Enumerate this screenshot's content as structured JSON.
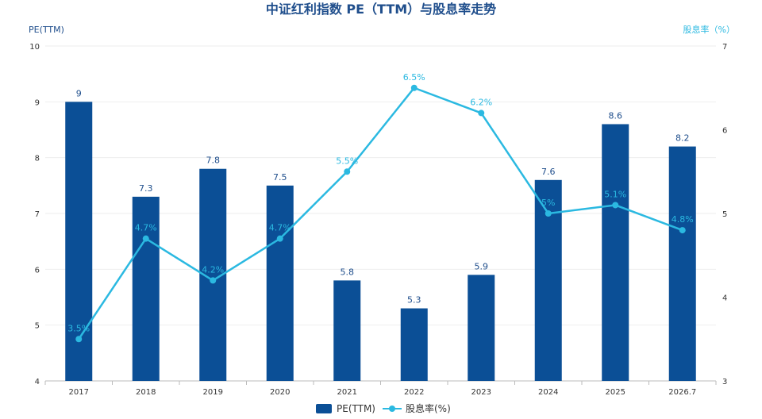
{
  "chart_data": {
    "type": "bar",
    "title": "中证红利指数 PE（TTM）与股息率走势",
    "categories": [
      "2017",
      "2018",
      "2019",
      "2020",
      "2021",
      "2022",
      "2023",
      "2024",
      "2025",
      "2026.7"
    ],
    "y_left": {
      "label": "PE(TTM)",
      "min": 4,
      "max": 10,
      "ticks": [
        "4",
        "5",
        "6",
        "7",
        "8",
        "9",
        "10"
      ]
    },
    "y_right": {
      "label": "股息率（%）",
      "min": 3,
      "max": 7,
      "ticks": [
        "3",
        "4",
        "5",
        "6",
        "7"
      ]
    },
    "series": [
      {
        "name": "PE(TTM)",
        "type": "bar",
        "axis": "left",
        "color": "#0b4f96",
        "values": [
          9,
          7.3,
          7.8,
          7.5,
          5.8,
          5.3,
          5.9,
          7.6,
          8.6,
          8.2
        ],
        "labels": [
          "9",
          "7.3",
          "7.8",
          "7.5",
          "5.8",
          "5.3",
          "5.9",
          "7.6",
          "8.6",
          "8.2"
        ]
      },
      {
        "name": "股息率(%)",
        "type": "line",
        "axis": "right",
        "color": "#2bb9e1",
        "values": [
          3.5,
          4.7,
          4.2,
          4.7,
          5.5,
          6.5,
          6.2,
          5.0,
          5.1,
          4.8
        ],
        "labels": [
          "3.5%",
          "4.7%",
          "4.2%",
          "4.7%",
          "5.5%",
          "6.5%",
          "6.2%",
          "5%",
          "5.1%",
          "4.8%"
        ]
      }
    ],
    "grid": true,
    "legend": "bottom-center"
  }
}
